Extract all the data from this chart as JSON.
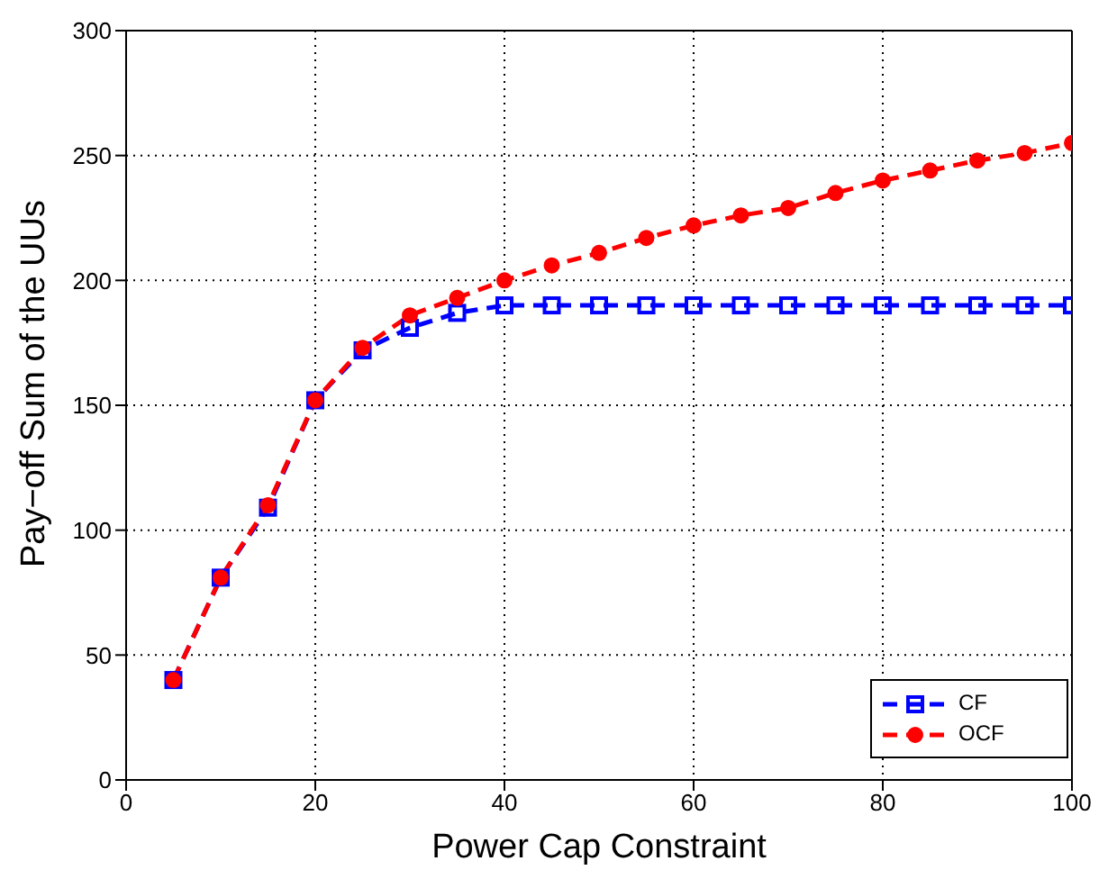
{
  "chart_data": {
    "type": "line",
    "xlabel": "Power Cap Constraint",
    "ylabel": "Pay−off Sum of the UUs",
    "x": [
      5,
      10,
      15,
      20,
      25,
      30,
      35,
      40,
      45,
      50,
      55,
      60,
      65,
      70,
      75,
      80,
      85,
      90,
      95,
      100
    ],
    "series": [
      {
        "name": "CF",
        "color": "#0000ff",
        "marker": "square",
        "values": [
          40,
          81,
          109,
          152,
          172,
          181,
          187,
          190,
          190,
          190,
          190,
          190,
          190,
          190,
          190,
          190,
          190,
          190,
          190,
          190
        ]
      },
      {
        "name": "OCF",
        "color": "#ff0000",
        "marker": "circle",
        "values": [
          40,
          81,
          110,
          152,
          173,
          186,
          193,
          200,
          206,
          211,
          217,
          222,
          226,
          229,
          235,
          240,
          244,
          248,
          251,
          255
        ]
      }
    ],
    "xlim": [
      0,
      100
    ],
    "xticks": [
      0,
      20,
      40,
      60,
      80,
      100
    ],
    "ylim": [
      0,
      300
    ],
    "yticks": [
      0,
      50,
      100,
      150,
      200,
      250,
      300
    ],
    "grid": true,
    "legend": "bottom right",
    "line_style": "dashed"
  }
}
